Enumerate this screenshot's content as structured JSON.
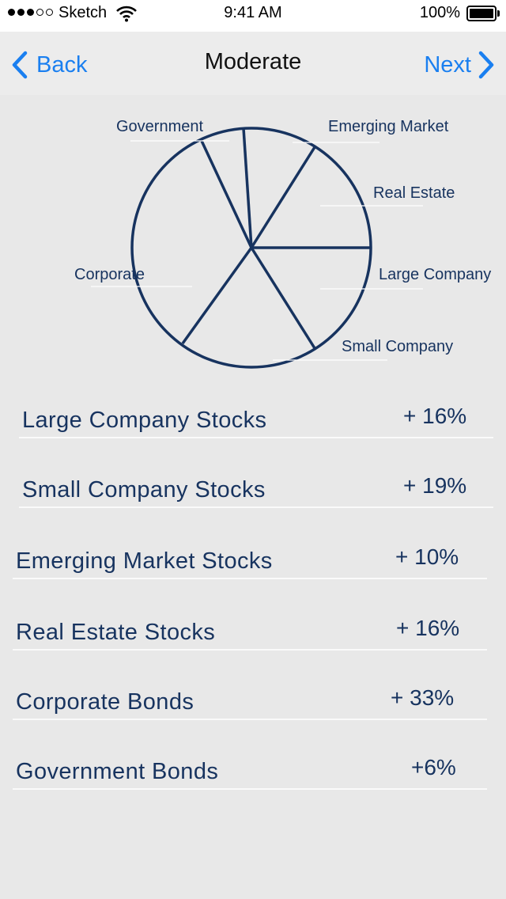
{
  "status_bar": {
    "carrier": "Sketch",
    "time": "9:41 AM",
    "battery": "100%",
    "signal_bars_filled": 3,
    "signal_bars_total": 5
  },
  "nav": {
    "back_label": "Back",
    "title": "Moderate",
    "next_label": "Next",
    "accent_color": "#1a7ff0"
  },
  "chart_data": {
    "type": "pie",
    "stroke_color": "#17335f",
    "slice_labels": [
      "Government",
      "Emerging Market",
      "Real Estate",
      "Large Company",
      "Small Company",
      "Corporate"
    ]
  },
  "allocations": [
    {
      "label": "Large Company Stocks",
      "value": "+ 16%"
    },
    {
      "label": "Small Company Stocks",
      "value": "+ 19%"
    },
    {
      "label": "Emerging Market Stocks",
      "value": "+ 10%"
    },
    {
      "label": "Real Estate Stocks",
      "value": "+ 16%"
    },
    {
      "label": "Corporate Bonds",
      "value": "+ 33%"
    },
    {
      "label": "Government Bonds",
      "value": "+6%"
    }
  ]
}
